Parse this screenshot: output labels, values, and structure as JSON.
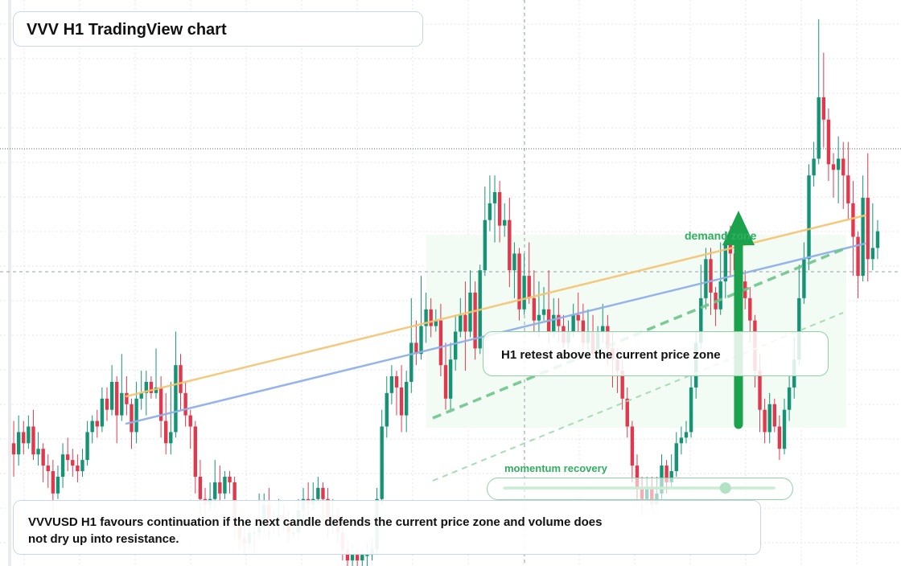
{
  "header": {
    "title": "VVV H1 TradingView chart"
  },
  "annotations": {
    "retest_label": "H1 retest above the current price zone",
    "demand_label": "demand zone",
    "momentum_label": "momentum recovery",
    "momentum_level": 0.82,
    "note": "VVVUSD H1 favours continuation if the next candle defends the current price zone and volume does not dry up into resistance."
  },
  "colors": {
    "up": "#149474",
    "down": "#e0394d",
    "ema_fast": "#f5c46f",
    "ema_slow": "#8fb0ea",
    "zone": "#2fae5f",
    "grid": "#e3e5ea",
    "card_border": "#c9d7ee"
  },
  "chart_data": {
    "type": "candlestick",
    "symbol": "VVVUSD",
    "timeframe": "H1",
    "title": "",
    "xlabel": "",
    "ylabel": "",
    "ylim": [
      0,
      100
    ],
    "grid": true,
    "note": "Price axis unlabeled; values in relative units (0 = bottom, 100 = top of visible range).",
    "candles": [
      [
        22,
        20,
        26,
        16
      ],
      [
        20,
        24,
        27,
        18
      ],
      [
        24,
        22,
        26,
        20
      ],
      [
        22,
        25,
        27,
        21
      ],
      [
        25,
        20,
        28,
        19
      ],
      [
        20,
        21,
        24,
        18
      ],
      [
        21,
        18,
        22,
        15
      ],
      [
        18,
        17,
        20,
        14
      ],
      [
        17,
        13,
        19,
        9
      ],
      [
        13,
        16,
        18,
        12
      ],
      [
        16,
        20,
        22,
        14
      ],
      [
        20,
        19,
        23,
        17
      ],
      [
        19,
        18,
        21,
        16
      ],
      [
        18,
        17,
        20,
        15
      ],
      [
        17,
        19,
        21,
        16
      ],
      [
        19,
        24,
        26,
        18
      ],
      [
        24,
        26,
        27,
        22
      ],
      [
        26,
        25,
        28,
        23
      ],
      [
        25,
        30,
        32,
        24
      ],
      [
        30,
        28,
        32,
        26
      ],
      [
        28,
        33,
        36,
        27
      ],
      [
        33,
        27,
        34,
        22
      ],
      [
        27,
        31,
        38,
        26
      ],
      [
        31,
        29,
        34,
        27
      ],
      [
        29,
        24,
        30,
        21
      ],
      [
        24,
        30,
        33,
        22
      ],
      [
        30,
        31,
        35,
        28
      ],
      [
        31,
        33,
        35,
        27
      ],
      [
        33,
        31,
        34,
        30
      ],
      [
        31,
        32,
        39,
        30
      ],
      [
        32,
        26,
        34,
        23
      ],
      [
        26,
        22,
        31,
        20
      ],
      [
        22,
        24,
        33,
        20
      ],
      [
        24,
        36,
        42,
        23
      ],
      [
        36,
        31,
        38,
        28
      ],
      [
        31,
        27,
        33,
        25
      ],
      [
        27,
        25,
        28,
        21
      ],
      [
        25,
        16,
        26,
        13
      ],
      [
        16,
        12,
        19,
        9
      ],
      [
        12,
        11,
        14,
        8
      ],
      [
        11,
        12,
        15,
        10
      ],
      [
        12,
        15,
        19,
        10
      ],
      [
        15,
        13,
        18,
        11
      ],
      [
        13,
        16,
        17,
        12
      ],
      [
        16,
        15,
        17,
        13
      ],
      [
        15,
        7,
        16,
        5
      ],
      [
        7,
        5,
        9,
        3
      ],
      [
        5,
        4,
        7,
        2
      ],
      [
        4,
        6,
        8,
        3
      ],
      [
        6,
        6,
        8,
        2
      ],
      [
        6,
        7,
        13,
        5
      ],
      [
        7,
        11,
        13,
        6
      ],
      [
        11,
        7,
        14,
        5
      ],
      [
        7,
        8,
        10,
        6
      ],
      [
        8,
        9,
        12,
        5
      ],
      [
        9,
        8,
        11,
        6
      ],
      [
        8,
        6,
        10,
        4
      ],
      [
        6,
        6,
        9,
        5
      ],
      [
        6,
        10,
        12,
        5
      ],
      [
        10,
        12,
        14,
        8
      ],
      [
        12,
        11,
        15,
        9
      ],
      [
        11,
        12,
        15,
        10
      ],
      [
        12,
        14,
        16,
        11
      ],
      [
        14,
        12,
        15,
        8
      ],
      [
        12,
        7,
        14,
        5
      ],
      [
        7,
        9,
        12,
        6
      ],
      [
        9,
        6,
        10,
        4
      ],
      [
        6,
        3,
        9,
        1
      ],
      [
        3,
        1,
        5,
        0
      ],
      [
        1,
        2,
        4,
        0
      ],
      [
        2,
        1,
        3,
        0
      ],
      [
        1,
        2,
        3,
        0
      ],
      [
        2,
        2,
        4,
        0
      ],
      [
        2,
        3,
        5,
        1
      ],
      [
        3,
        12,
        14,
        2
      ],
      [
        12,
        25,
        28,
        11
      ],
      [
        25,
        31,
        34,
        23
      ],
      [
        31,
        34,
        36,
        29
      ],
      [
        34,
        32,
        35,
        27
      ],
      [
        32,
        27,
        36,
        24
      ],
      [
        27,
        33,
        35,
        24
      ],
      [
        33,
        40,
        48,
        31
      ],
      [
        40,
        38,
        44,
        36
      ],
      [
        38,
        43,
        52,
        37
      ],
      [
        43,
        46,
        49,
        40
      ],
      [
        46,
        43,
        48,
        41
      ],
      [
        43,
        44,
        46,
        42
      ],
      [
        44,
        36,
        47,
        34
      ],
      [
        36,
        30,
        40,
        28
      ],
      [
        30,
        37,
        40,
        28
      ],
      [
        37,
        42,
        45,
        35
      ],
      [
        42,
        45,
        48,
        41
      ],
      [
        45,
        42,
        51,
        35
      ],
      [
        42,
        49,
        53,
        41
      ],
      [
        49,
        39,
        51,
        37
      ],
      [
        39,
        53,
        54,
        38
      ],
      [
        53,
        62,
        68,
        52
      ],
      [
        62,
        65,
        70,
        60
      ],
      [
        65,
        67,
        70,
        58
      ],
      [
        67,
        61,
        69,
        58
      ],
      [
        61,
        62,
        65,
        59
      ],
      [
        62,
        53,
        66,
        50
      ],
      [
        53,
        56,
        58,
        48
      ],
      [
        56,
        46,
        57,
        44
      ],
      [
        46,
        52,
        56,
        45
      ],
      [
        52,
        48,
        58,
        47
      ],
      [
        48,
        44,
        53,
        42
      ],
      [
        44,
        45,
        51,
        41
      ],
      [
        45,
        46,
        50,
        44
      ],
      [
        46,
        42,
        53,
        40
      ],
      [
        42,
        45,
        48,
        41
      ],
      [
        45,
        43,
        48,
        40
      ],
      [
        43,
        40,
        45,
        39
      ],
      [
        40,
        42,
        44,
        39
      ],
      [
        42,
        45,
        47,
        41
      ],
      [
        45,
        44,
        49,
        42
      ],
      [
        44,
        40,
        47,
        38
      ],
      [
        40,
        42,
        46,
        38
      ],
      [
        42,
        38,
        45,
        37
      ],
      [
        38,
        42,
        43,
        37
      ],
      [
        42,
        43,
        47,
        40
      ],
      [
        43,
        39,
        45,
        36
      ],
      [
        39,
        37,
        42,
        32
      ],
      [
        37,
        35,
        39,
        31
      ],
      [
        35,
        30,
        37,
        28
      ],
      [
        30,
        25,
        32,
        23
      ],
      [
        25,
        18,
        26,
        15
      ],
      [
        18,
        14,
        20,
        11
      ],
      [
        14,
        12,
        16,
        9
      ],
      [
        12,
        14,
        16,
        11
      ],
      [
        14,
        11,
        16,
        10
      ],
      [
        11,
        13,
        16,
        11
      ],
      [
        13,
        18,
        20,
        12
      ],
      [
        18,
        15,
        19,
        13
      ],
      [
        15,
        17,
        20,
        14
      ],
      [
        17,
        22,
        24,
        16
      ],
      [
        22,
        23,
        25,
        20
      ],
      [
        23,
        24,
        26,
        22
      ],
      [
        24,
        32,
        34,
        23
      ],
      [
        32,
        40,
        42,
        30
      ],
      [
        40,
        48,
        54,
        39
      ],
      [
        48,
        55,
        57,
        46
      ],
      [
        55,
        49,
        57,
        45
      ],
      [
        49,
        46,
        50,
        43
      ],
      [
        46,
        51,
        58,
        45
      ],
      [
        51,
        58,
        60,
        48
      ],
      [
        58,
        56,
        61,
        52
      ],
      [
        56,
        53,
        58,
        50
      ],
      [
        53,
        51,
        57,
        48
      ],
      [
        51,
        48,
        53,
        46
      ],
      [
        48,
        44,
        50,
        40
      ],
      [
        44,
        35,
        45,
        32
      ],
      [
        35,
        28,
        38,
        24
      ],
      [
        28,
        24,
        30,
        22
      ],
      [
        24,
        29,
        31,
        22
      ],
      [
        29,
        25,
        30,
        24
      ],
      [
        25,
        21,
        27,
        19
      ],
      [
        21,
        28,
        30,
        20
      ],
      [
        28,
        32,
        34,
        26
      ],
      [
        32,
        37,
        41,
        30
      ],
      [
        37,
        48,
        54,
        36
      ],
      [
        48,
        55,
        58,
        47
      ],
      [
        55,
        70,
        72,
        53
      ],
      [
        70,
        73,
        76,
        68
      ],
      [
        73,
        84,
        98,
        72
      ],
      [
        84,
        80,
        92,
        75
      ],
      [
        80,
        72,
        82,
        69
      ],
      [
        72,
        71,
        74,
        66
      ],
      [
        71,
        73,
        77,
        65
      ],
      [
        73,
        70,
        76,
        64
      ],
      [
        70,
        65,
        76,
        62
      ],
      [
        65,
        59,
        69,
        52
      ],
      [
        59,
        52,
        60,
        48
      ],
      [
        52,
        66,
        70,
        51
      ],
      [
        66,
        55,
        74,
        51
      ],
      [
        55,
        57,
        65,
        53
      ],
      [
        57,
        60,
        62,
        55
      ]
    ]
  }
}
